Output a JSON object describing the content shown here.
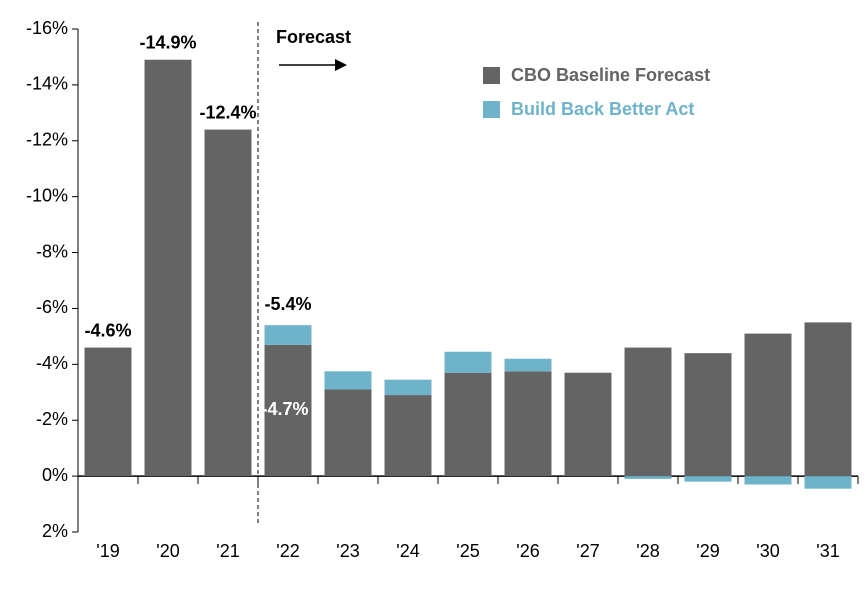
{
  "chart_data": {
    "type": "stacked_bar",
    "categories": [
      "'19",
      "'20",
      "'21",
      "'22",
      "'23",
      "'24",
      "'25",
      "'26",
      "'27",
      "'28",
      "'29",
      "'30",
      "'31"
    ],
    "series": [
      {
        "name": "CBO Baseline Forecast",
        "color": "#646464",
        "values": [
          -4.6,
          -14.9,
          -12.4,
          -4.7,
          -3.1,
          -2.9,
          -3.7,
          -3.75,
          -3.7,
          -4.6,
          -4.4,
          -5.1,
          -5.5
        ],
        "value_labels": [
          "-4.6%",
          "-14.9%",
          "-12.4%",
          "-4.7%",
          null,
          null,
          null,
          null,
          null,
          null,
          null,
          null,
          null
        ]
      },
      {
        "name": "Build Back Better Act",
        "color": "#6fb3cb",
        "values": [
          null,
          null,
          null,
          -0.7,
          -0.65,
          -0.55,
          -0.75,
          -0.45,
          null,
          0.1,
          0.2,
          0.3,
          0.45
        ]
      }
    ],
    "annotations": [
      {
        "x": "'22",
        "value": -5.4,
        "label": "-5.4%"
      },
      {
        "text": "Forecast"
      }
    ],
    "ylim": [
      2,
      -16
    ],
    "yticks": [
      {
        "value": -16,
        "label": "-16%"
      },
      {
        "value": -14,
        "label": "-14%"
      },
      {
        "value": -12,
        "label": "-12%"
      },
      {
        "value": -10,
        "label": "-10%"
      },
      {
        "value": -8,
        "label": "-8%"
      },
      {
        "value": -6,
        "label": "-6%"
      },
      {
        "value": -4,
        "label": "-4%"
      },
      {
        "value": -2,
        "label": "-2%"
      },
      {
        "value": 0,
        "label": "0%"
      },
      {
        "value": 2,
        "label": "2%"
      }
    ],
    "legend": "top-right"
  }
}
